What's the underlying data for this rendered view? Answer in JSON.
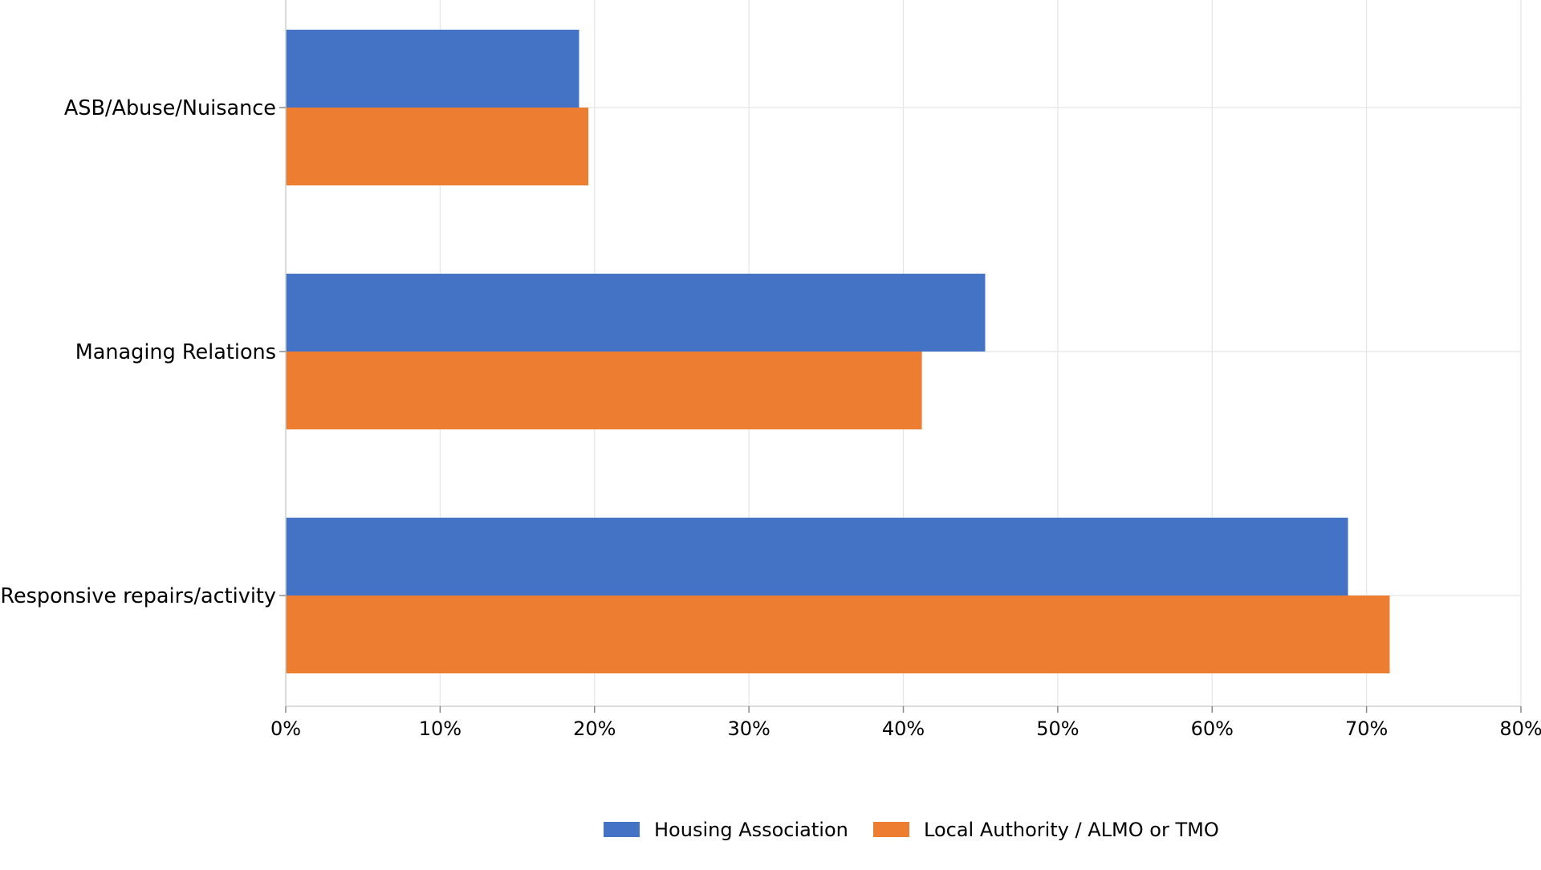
{
  "chart_data": {
    "type": "bar",
    "orientation": "horizontal",
    "categories": [
      "ASB/Abuse/Nuisance",
      "Managing Relations",
      "Responsive repairs/activity"
    ],
    "series": [
      {
        "name": "Housing Association",
        "color": "#4472C4",
        "values": [
          19,
          45.3,
          68.8
        ]
      },
      {
        "name": "Local Authority / ALMO or TMO",
        "color": "#ED7D31",
        "values": [
          19.6,
          41.2,
          71.5
        ]
      }
    ],
    "x_ticks": [
      "0%",
      "10%",
      "20%",
      "30%",
      "40%",
      "50%",
      "60%",
      "70%",
      "80%"
    ],
    "xlim": [
      0,
      80
    ],
    "x_unit": "%",
    "grid": true,
    "legend_position": "bottom-center"
  }
}
